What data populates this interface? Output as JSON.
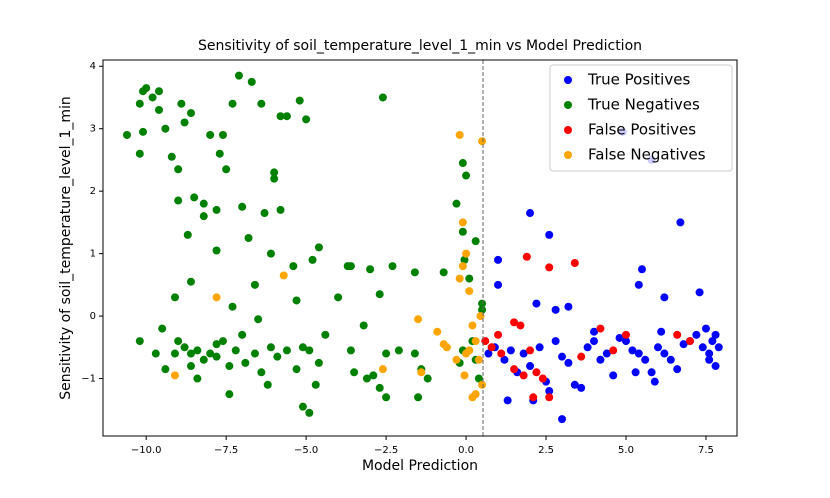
{
  "chart_data": {
    "type": "scatter",
    "title": "Sensitivity of soil_temperature_level_1_min vs Model Prediction",
    "x_label": "Model Prediction",
    "y_label": "Sensitivity of soil_temperature_level_1_min",
    "xlim": [
      -11.35,
      8.47
    ],
    "ylim": [
      -1.92,
      4.1
    ],
    "xticks": [
      {
        "value": -10,
        "label": "−10.0"
      },
      {
        "value": -7.5,
        "label": "−7.5"
      },
      {
        "value": -5,
        "label": "−5.0"
      },
      {
        "value": -2.5,
        "label": "−2.5"
      },
      {
        "value": 0,
        "label": "0.0"
      },
      2.5,
      {
        "value": 5,
        "label": "5.0"
      },
      7.5
    ],
    "yticks": [
      {
        "value": -1,
        "label": "−1"
      },
      0,
      1,
      2,
      3,
      4
    ],
    "vline": 0.53,
    "legend": "upper right",
    "series": [
      {
        "name": "True Positives",
        "color": "blue",
        "x": [
          2,
          2.6,
          1,
          6.7,
          5.8,
          4.9,
          5.5,
          5.4,
          6.2,
          7.3,
          2.2,
          2.8,
          3.2,
          1,
          0.7,
          0.9,
          1.2,
          1.4,
          1.6,
          1.8,
          2,
          2.3,
          2.5,
          2.6,
          2.8,
          3,
          3.2,
          3.4,
          3.6,
          3.8,
          4,
          4.2,
          4.4,
          4.6,
          4.8,
          5,
          5.2,
          5.4,
          5.6,
          5.8,
          6,
          6.2,
          6.4,
          6.6,
          6.8,
          7,
          7.2,
          7.4,
          7.5,
          7.6,
          7.7,
          7.8,
          7.9,
          7.6,
          7.8,
          1.3,
          2.1,
          3,
          5.9,
          5.3,
          4,
          6.1
        ],
        "values": [
          1.65,
          1.3,
          0.9,
          1.5,
          2.5,
          2.95,
          0.75,
          0.5,
          0.3,
          0.38,
          0.2,
          0.1,
          0.15,
          0.5,
          -0.6,
          -0.5,
          -0.7,
          -0.55,
          -0.9,
          -0.6,
          -0.8,
          -0.5,
          -1.05,
          -1.2,
          -0.4,
          -0.65,
          -0.75,
          -1.1,
          -1.15,
          -0.5,
          -0.4,
          -0.7,
          -0.6,
          -0.95,
          -0.35,
          -0.4,
          -0.55,
          -0.6,
          -0.7,
          -0.9,
          -0.5,
          -0.6,
          -0.7,
          -0.85,
          -0.45,
          -0.4,
          -0.3,
          -0.5,
          -0.2,
          -0.6,
          -0.4,
          -0.3,
          -0.5,
          -0.7,
          -0.8,
          -1.35,
          -1.35,
          -1.65,
          -1.05,
          -0.9,
          -0.25,
          -0.25
        ]
      },
      {
        "name": "True Negatives",
        "color": "green",
        "x": [
          -10.6,
          -10.2,
          -10.1,
          -10,
          -9.8,
          -9.6,
          -10.2,
          -10.1,
          -9.6,
          -9.4,
          -9.2,
          -9,
          -8.8,
          -8.6,
          -8.9,
          -8.5,
          -8,
          -7.6,
          -7.3,
          -7.7,
          -7.1,
          -6.7,
          -6.4,
          -5.8,
          -5.2,
          -5.6,
          -5,
          -4.8,
          -6,
          -6,
          -7.5,
          -8.2,
          -8.2,
          -8.7,
          -7.8,
          -7,
          -6.8,
          -6.3,
          -5.8,
          -9,
          -7.8,
          -6.6,
          -6.1,
          -5.4,
          -4.6,
          -3.7,
          -2.6,
          -3.6,
          -3,
          -2.3,
          -1.6,
          -0.7,
          -0.3,
          -0.1,
          0,
          -0.1,
          0.3,
          -0.05,
          0.1,
          -0.1,
          -0.2,
          0.2,
          0.3,
          0.4,
          0.5,
          0.5,
          -9.1,
          -8.6,
          -7.3,
          -6.5,
          -5.3,
          -4,
          -2.7,
          -9.5,
          -9,
          -8.8,
          -8.6,
          -8.4,
          -8.2,
          -8,
          -7.8,
          -7.6,
          -7.4,
          -7.2,
          -7,
          -6.9,
          -6.6,
          -6.4,
          -6.1,
          -5.9,
          -5.6,
          -5.3,
          -5.1,
          -4.9,
          -4.6,
          -4.4,
          -3.6,
          -3.2,
          -2.9,
          -2.7,
          -2.5,
          -2.1,
          -1.6,
          -1.4,
          -1.2,
          -9.7,
          -9.4,
          -9.1,
          -8.6,
          -8.4,
          -7.4,
          -6.2,
          -5.1,
          -4.9,
          -4.7,
          -3.5,
          -3.1,
          -2.5,
          -1.5,
          -10.2,
          -7.8
        ],
        "values": [
          2.9,
          3.4,
          3.6,
          3.65,
          3.5,
          3.6,
          2.6,
          2.95,
          3.3,
          3,
          2.55,
          2.35,
          3.1,
          3.25,
          3.4,
          1.9,
          2.9,
          2.9,
          3.4,
          2.6,
          3.85,
          3.75,
          3.4,
          3.2,
          3.45,
          3.2,
          3.15,
          0.9,
          2.3,
          2.2,
          2.35,
          1.6,
          1.8,
          1.3,
          1.05,
          1.75,
          1.25,
          1.65,
          1.7,
          1.85,
          1.7,
          0.5,
          1,
          0.8,
          1.1,
          0.8,
          3.5,
          0.8,
          0.75,
          0.8,
          0.7,
          0.7,
          1.8,
          2.45,
          2.25,
          1.35,
          1.2,
          0.9,
          0.6,
          -0.55,
          -0.75,
          -0.4,
          -0.7,
          -1,
          0.2,
          0.1,
          0.3,
          0.55,
          0.15,
          -0.05,
          0.25,
          0.3,
          0.35,
          -0.2,
          -0.4,
          -0.5,
          -0.6,
          -0.55,
          -0.7,
          -0.6,
          -0.65,
          -0.4,
          -0.8,
          -0.55,
          -0.3,
          -0.75,
          -0.6,
          -0.9,
          -0.5,
          -0.65,
          -0.55,
          -0.85,
          -0.5,
          -0.55,
          -0.75,
          -0.3,
          -0.55,
          -0.15,
          -0.95,
          -1.15,
          -0.6,
          -0.55,
          -0.6,
          -0.85,
          -1,
          -0.6,
          -0.85,
          -0.6,
          -0.8,
          -1,
          -1.25,
          -1.1,
          -1.45,
          -1.55,
          -1.1,
          -0.9,
          -1,
          -1.3,
          -1.3,
          -0.4,
          -0.45
        ]
      },
      {
        "name": "False Positives",
        "color": "red",
        "x": [
          1.9,
          2.6,
          3.4,
          0.8,
          1.1,
          1.5,
          1.7,
          2,
          2.2,
          2.4,
          1.8,
          1.5,
          2.1,
          2.6,
          3.6,
          4.2,
          4.6,
          5,
          6.6,
          7,
          0.6,
          1
        ],
        "values": [
          0.95,
          0.78,
          0.85,
          -0.5,
          -0.6,
          -0.1,
          -0.15,
          -0.55,
          -0.9,
          -1,
          -0.95,
          -0.85,
          -1.3,
          -1.3,
          -0.65,
          -0.2,
          -0.55,
          -0.3,
          -0.3,
          -0.4,
          -0.4,
          -0.3
        ]
      },
      {
        "name": "False Negatives",
        "color": "orange",
        "x": [
          -0.2,
          0.5,
          -0.1,
          -0.1,
          0,
          0.1,
          -0.2,
          -5.7,
          -7.8,
          -1.5,
          -0.9,
          -0.7,
          -0.6,
          -0.3,
          0,
          0.1,
          0.3,
          0.4,
          0.5,
          0.3,
          0.2,
          -0.05,
          -1.4,
          -2.6,
          -9.1,
          0.45,
          0.2
        ],
        "values": [
          2.9,
          2.8,
          1.5,
          0.8,
          1,
          0.4,
          0.6,
          0.65,
          0.3,
          -0.05,
          -0.25,
          -0.45,
          -0.5,
          -0.7,
          -0.6,
          -0.55,
          -0.4,
          -0.7,
          -1.1,
          -1.25,
          -1.3,
          -0.95,
          -0.9,
          -0.85,
          -0.95,
          0,
          -0.15
        ]
      }
    ]
  }
}
